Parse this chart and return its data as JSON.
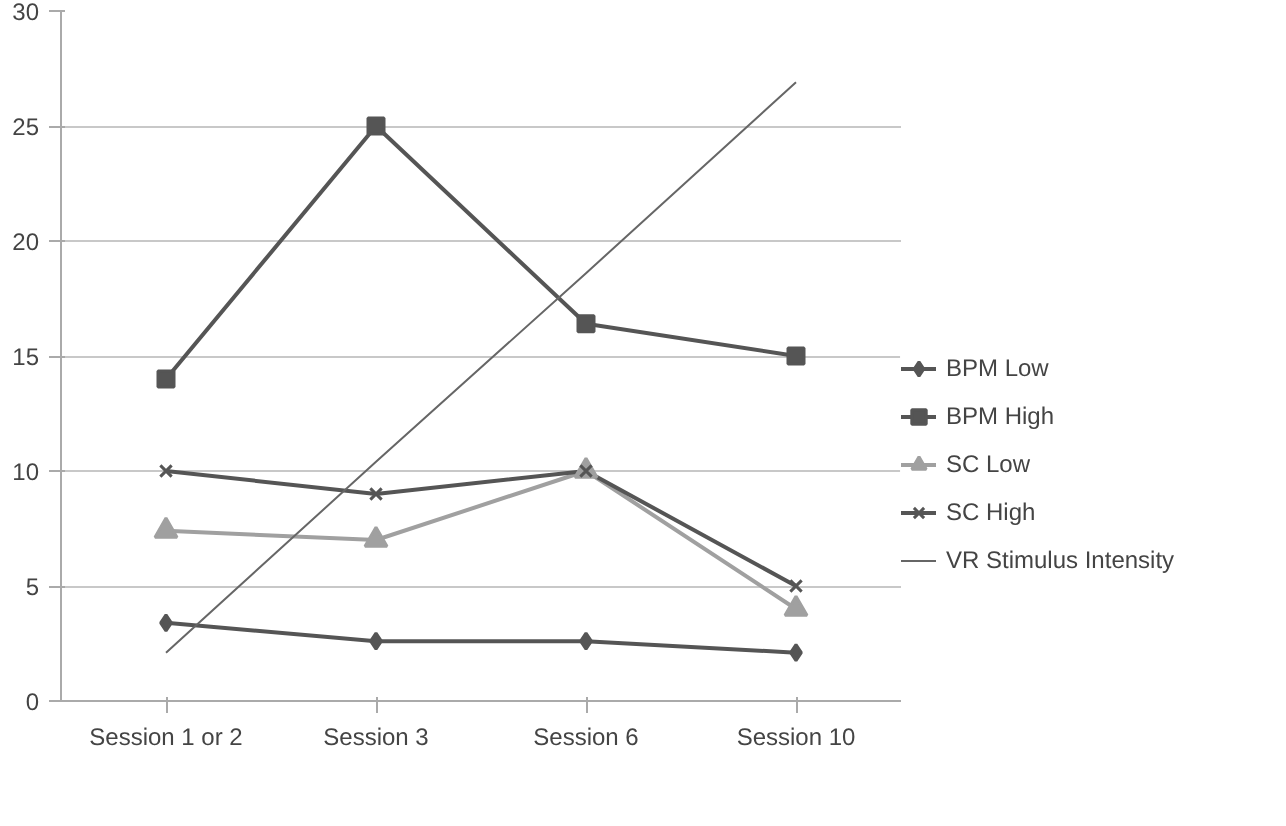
{
  "chart_data": {
    "type": "line",
    "categories": [
      "Session 1 or 2",
      "Session 3",
      "Session 6",
      "Session 10"
    ],
    "series": [
      {
        "name": "BPM Low",
        "color": "#555555",
        "marker": "diamond",
        "values": [
          3.4,
          2.6,
          2.6,
          2.1
        ]
      },
      {
        "name": "BPM High",
        "color": "#555555",
        "marker": "square",
        "values": [
          14,
          25,
          16.4,
          15
        ]
      },
      {
        "name": "SC Low",
        "color": "#a0a0a0",
        "marker": "triangle",
        "values": [
          7.4,
          7,
          10,
          4
        ]
      },
      {
        "name": "SC High",
        "color": "#555555",
        "marker": "cross",
        "values": [
          10,
          9,
          10,
          5
        ]
      },
      {
        "name": "VR Stimulus Intensity",
        "color": "#666666",
        "marker": "none",
        "values": [
          2.1,
          10.4,
          18.6,
          26.9
        ]
      }
    ],
    "ylim": [
      0,
      30
    ],
    "yticks": [
      0,
      5,
      10,
      15,
      20,
      25,
      30
    ],
    "grid": "y",
    "legend": "right"
  }
}
